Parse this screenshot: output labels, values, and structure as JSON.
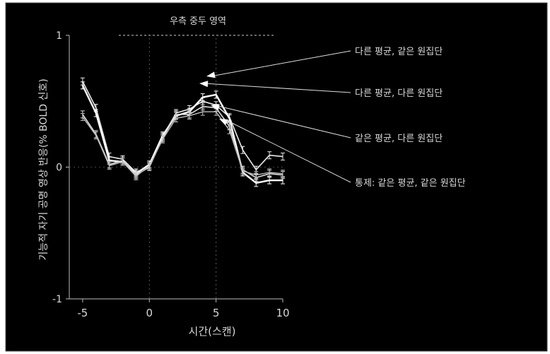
{
  "chart_data": {
    "type": "line",
    "title": "우측 중두 영역",
    "xlabel": "시간(스캔)",
    "ylabel": "기능적 자기 공명 영상 반응(% BOLD 신호)",
    "xlim": [
      -6,
      10
    ],
    "ylim": [
      -1,
      1
    ],
    "x_ticks": [
      -5,
      0,
      5,
      10
    ],
    "y_ticks": [
      -1,
      0,
      1
    ],
    "grid": false,
    "colors": {
      "background": "#000000",
      "series_1": "#e8e8e8",
      "series_2": "#ffffff",
      "series_3": "#dcdcdc",
      "series_4": "#bdbdbd"
    },
    "x": [
      -5,
      -4,
      -3,
      -2,
      -1,
      0,
      1,
      2,
      3,
      4,
      5,
      6,
      7,
      8,
      9,
      10
    ],
    "series": [
      {
        "name": "다른 평균, 같은 원집단",
        "values": [
          0.65,
          0.45,
          0.08,
          0.06,
          -0.04,
          0.01,
          0.23,
          0.41,
          0.44,
          0.5,
          0.47,
          0.38,
          0.13,
          -0.02,
          0.09,
          0.08
        ]
      },
      {
        "name": "다른 평균, 다른 원집단",
        "values": [
          0.62,
          0.41,
          0.05,
          0.04,
          -0.05,
          0.02,
          0.24,
          0.39,
          0.42,
          0.53,
          0.55,
          0.37,
          -0.04,
          -0.12,
          -0.1,
          -0.1
        ]
      },
      {
        "name": "같은 평균, 다른 원집단",
        "values": [
          0.4,
          0.25,
          0.02,
          0.05,
          -0.06,
          0.0,
          0.22,
          0.4,
          0.4,
          0.46,
          0.45,
          0.31,
          -0.02,
          -0.08,
          -0.05,
          -0.06
        ]
      },
      {
        "name": "통제: 같은 평균, 같은 원집단",
        "values": [
          0.38,
          0.24,
          0.01,
          0.04,
          -0.07,
          0.01,
          0.21,
          0.37,
          0.39,
          0.42,
          0.42,
          0.28,
          -0.03,
          -0.06,
          -0.04,
          -0.05
        ]
      }
    ],
    "annotations": [
      {
        "text": "다른 평균, 같은 원집단",
        "points_to_series": 0
      },
      {
        "text": "다른 평균, 다른 원집단",
        "points_to_series": 1
      },
      {
        "text": "같은 평균, 다른 원집단",
        "points_to_series": 2
      },
      {
        "text": "통제: 같은 평균, 같은 원집단",
        "points_to_series": 3
      }
    ]
  }
}
